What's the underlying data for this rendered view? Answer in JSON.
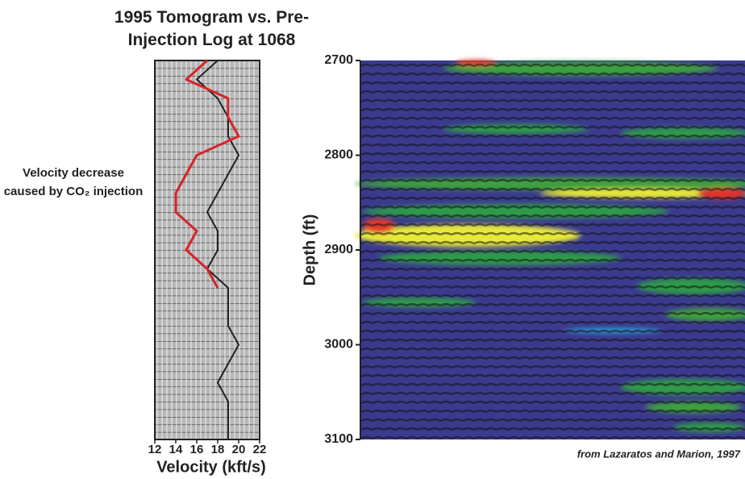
{
  "chart_data": [
    {
      "type": "line",
      "title": "1995 Tomogram vs. Pre-Injection Log at 1068",
      "annotation": "Velocity decrease caused by CO₂ injection",
      "xlabel": "Velocity (kft/s)",
      "xlim": [
        12,
        22
      ],
      "xticks": [
        12,
        14,
        16,
        18,
        20,
        22
      ],
      "ylim": [
        2700,
        3100
      ],
      "y_inverted": true,
      "depth": [
        2700,
        2720,
        2740,
        2760,
        2780,
        2800,
        2820,
        2840,
        2860,
        2880,
        2900,
        2920,
        2940,
        2960,
        2980,
        3000,
        3020,
        3040,
        3060,
        3080,
        3100
      ],
      "series": [
        {
          "color": "#222222",
          "values": [
            18,
            16,
            18,
            19,
            19,
            20,
            19,
            18,
            17,
            18,
            18,
            17,
            19,
            19,
            19,
            20,
            19,
            18,
            19,
            19,
            19
          ]
        },
        {
          "color": "#d8232a",
          "values": [
            17,
            15,
            19,
            19,
            20,
            16,
            15,
            14,
            14,
            16,
            15,
            17,
            18,
            null,
            null,
            null,
            null,
            null,
            null,
            null,
            null
          ]
        }
      ]
    },
    {
      "type": "heatmap",
      "ylabel": "Depth (ft)",
      "ylim": [
        2700,
        3100
      ],
      "yticks": [
        2700,
        2800,
        2900,
        3000,
        3100
      ],
      "y_inverted": true,
      "note": "from Lazaratos and Marion, 1997"
    }
  ]
}
